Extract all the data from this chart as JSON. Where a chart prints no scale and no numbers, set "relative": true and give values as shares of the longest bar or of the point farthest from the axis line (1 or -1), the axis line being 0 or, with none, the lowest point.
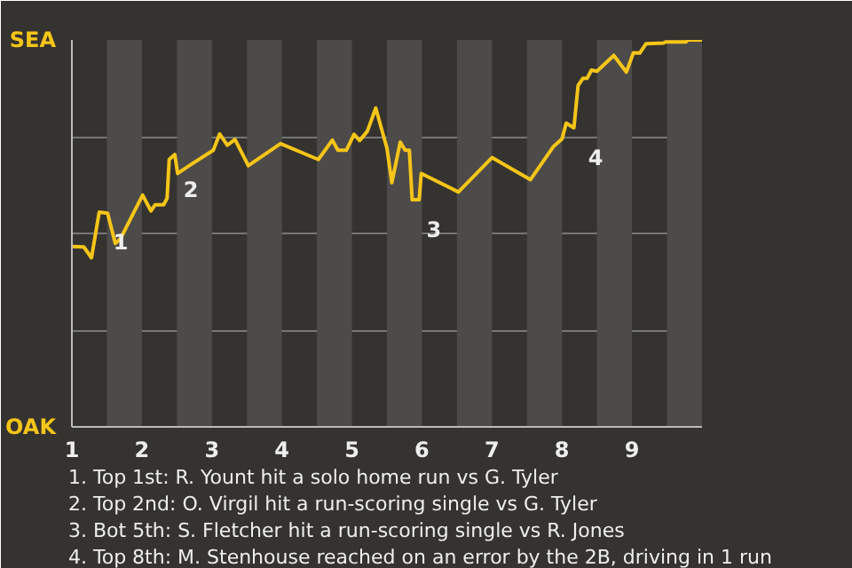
{
  "chart_data": {
    "type": "line",
    "relative": true,
    "xlim": [
      1,
      10
    ],
    "xticks": [
      1,
      2,
      3,
      4,
      5,
      6,
      7,
      8,
      9
    ],
    "x": [
      1,
      1.17,
      1.28,
      1.39,
      1.51,
      1.62,
      1.69,
      2.01,
      2.13,
      2.19,
      2.31,
      2.36,
      2.39,
      2.47,
      2.51,
      2.71,
      3.02,
      3.11,
      3.22,
      3.33,
      3.52,
      3.98,
      4.52,
      4.72,
      4.8,
      4.92,
      5.03,
      5.11,
      5.22,
      5.34,
      5.5,
      5.57,
      5.69,
      5.76,
      5.82,
      5.86,
      5.96,
      5.99,
      6.52,
      7,
      7.55,
      7.88,
      8,
      8.06,
      8.17,
      8.23,
      8.3,
      8.36,
      8.42,
      8.5,
      8.74,
      8.92,
      9.02,
      9.11,
      9.2,
      9.45,
      9.48,
      9.77,
      9.8,
      10
    ],
    "grid": "y",
    "marker": "none",
    "line_style": "solid",
    "series": [
      {
        "color": "#f5c518",
        "values": [
          0.466,
          0.465,
          0.437,
          0.555,
          0.552,
          0.474,
          0.485,
          0.599,
          0.558,
          0.574,
          0.574,
          0.591,
          0.691,
          0.704,
          0.655,
          0.679,
          0.715,
          0.757,
          0.728,
          0.743,
          0.675,
          0.732,
          0.691,
          0.741,
          0.715,
          0.715,
          0.756,
          0.74,
          0.764,
          0.824,
          0.72,
          0.631,
          0.736,
          0.715,
          0.715,
          0.587,
          0.587,
          0.655,
          0.607,
          0.696,
          0.639,
          0.725,
          0.744,
          0.785,
          0.773,
          0.882,
          0.901,
          0.901,
          0.922,
          0.919,
          0.96,
          0.917,
          0.967,
          0.966,
          0.99,
          0.992,
          0.995,
          0.995,
          1,
          1
        ]
      }
    ],
    "bands": [
      {
        "axis": "x",
        "from": 1.5,
        "to": 2,
        "color": "#4d4b49"
      },
      {
        "axis": "x",
        "from": 2.5,
        "to": 3,
        "color": "#4d4b49"
      },
      {
        "axis": "x",
        "from": 3.5,
        "to": 4,
        "color": "#4d4b49"
      },
      {
        "axis": "x",
        "from": 4.5,
        "to": 5,
        "color": "#4d4b49"
      },
      {
        "axis": "x",
        "from": 5.5,
        "to": 6,
        "color": "#4d4b49"
      },
      {
        "axis": "x",
        "from": 6.5,
        "to": 7,
        "color": "#4d4b49"
      },
      {
        "axis": "x",
        "from": 7.5,
        "to": 8,
        "color": "#4d4b49"
      },
      {
        "axis": "x",
        "from": 8.5,
        "to": 9,
        "color": "#4d4b49"
      },
      {
        "axis": "x",
        "from": 9.5,
        "to": 10,
        "color": "#4d4b49"
      }
    ],
    "annotations": [
      "SEA",
      "OAK",
      {
        "text": "1",
        "x": 1.39,
        "y": 0.555
      },
      {
        "text": "2",
        "x": 2.39,
        "y": 0.691
      },
      {
        "text": "3",
        "x": 5.86,
        "y": 0.587
      },
      {
        "text": "4",
        "x": 8.17,
        "y": 0.773
      },
      "1. Top 1st: R. Yount hit a solo home run vs G. Tyler",
      "2. Top 2nd: O. Virgil hit a run-scoring single vs G. Tyler",
      "3. Bot 5th: S. Fletcher hit a run-scoring single vs R. Jones",
      "4. Top 8th: M. Stenhouse reached on an error by the 2B, driving in 1 run"
    ]
  }
}
